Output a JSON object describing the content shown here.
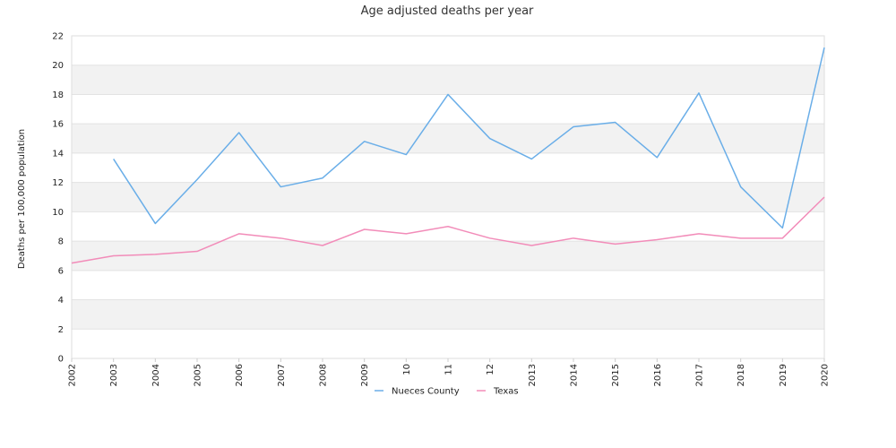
{
  "chart_data": {
    "type": "line",
    "title": "Age adjusted deaths per year",
    "xlabel": "",
    "ylabel": "Deaths per 100,000 population",
    "x": [
      "2002",
      "2003",
      "2004",
      "2005",
      "2006",
      "2007",
      "2008",
      "2009",
      "10",
      "11",
      "12",
      "2013",
      "2014",
      "2015",
      "2016",
      "2017",
      "2018",
      "2019",
      "2020"
    ],
    "ylim": [
      0,
      22
    ],
    "yticks": [
      0,
      2,
      4,
      6,
      8,
      10,
      12,
      14,
      16,
      18,
      20,
      22
    ],
    "grid": true,
    "legend_position": "bottom",
    "series": [
      {
        "name": "Nueces County",
        "color": "#6aaee8",
        "values": [
          null,
          13.6,
          9.2,
          12.2,
          15.4,
          11.7,
          12.3,
          14.8,
          13.9,
          18.0,
          15.0,
          13.6,
          15.8,
          16.1,
          13.7,
          18.1,
          11.7,
          8.9,
          21.2
        ]
      },
      {
        "name": "Texas",
        "color": "#f28cb9",
        "values": [
          6.5,
          7.0,
          7.1,
          7.3,
          8.5,
          8.2,
          7.7,
          8.8,
          8.5,
          9.0,
          8.2,
          7.7,
          8.2,
          7.8,
          8.1,
          8.5,
          8.2,
          8.2,
          11.0
        ]
      }
    ]
  }
}
